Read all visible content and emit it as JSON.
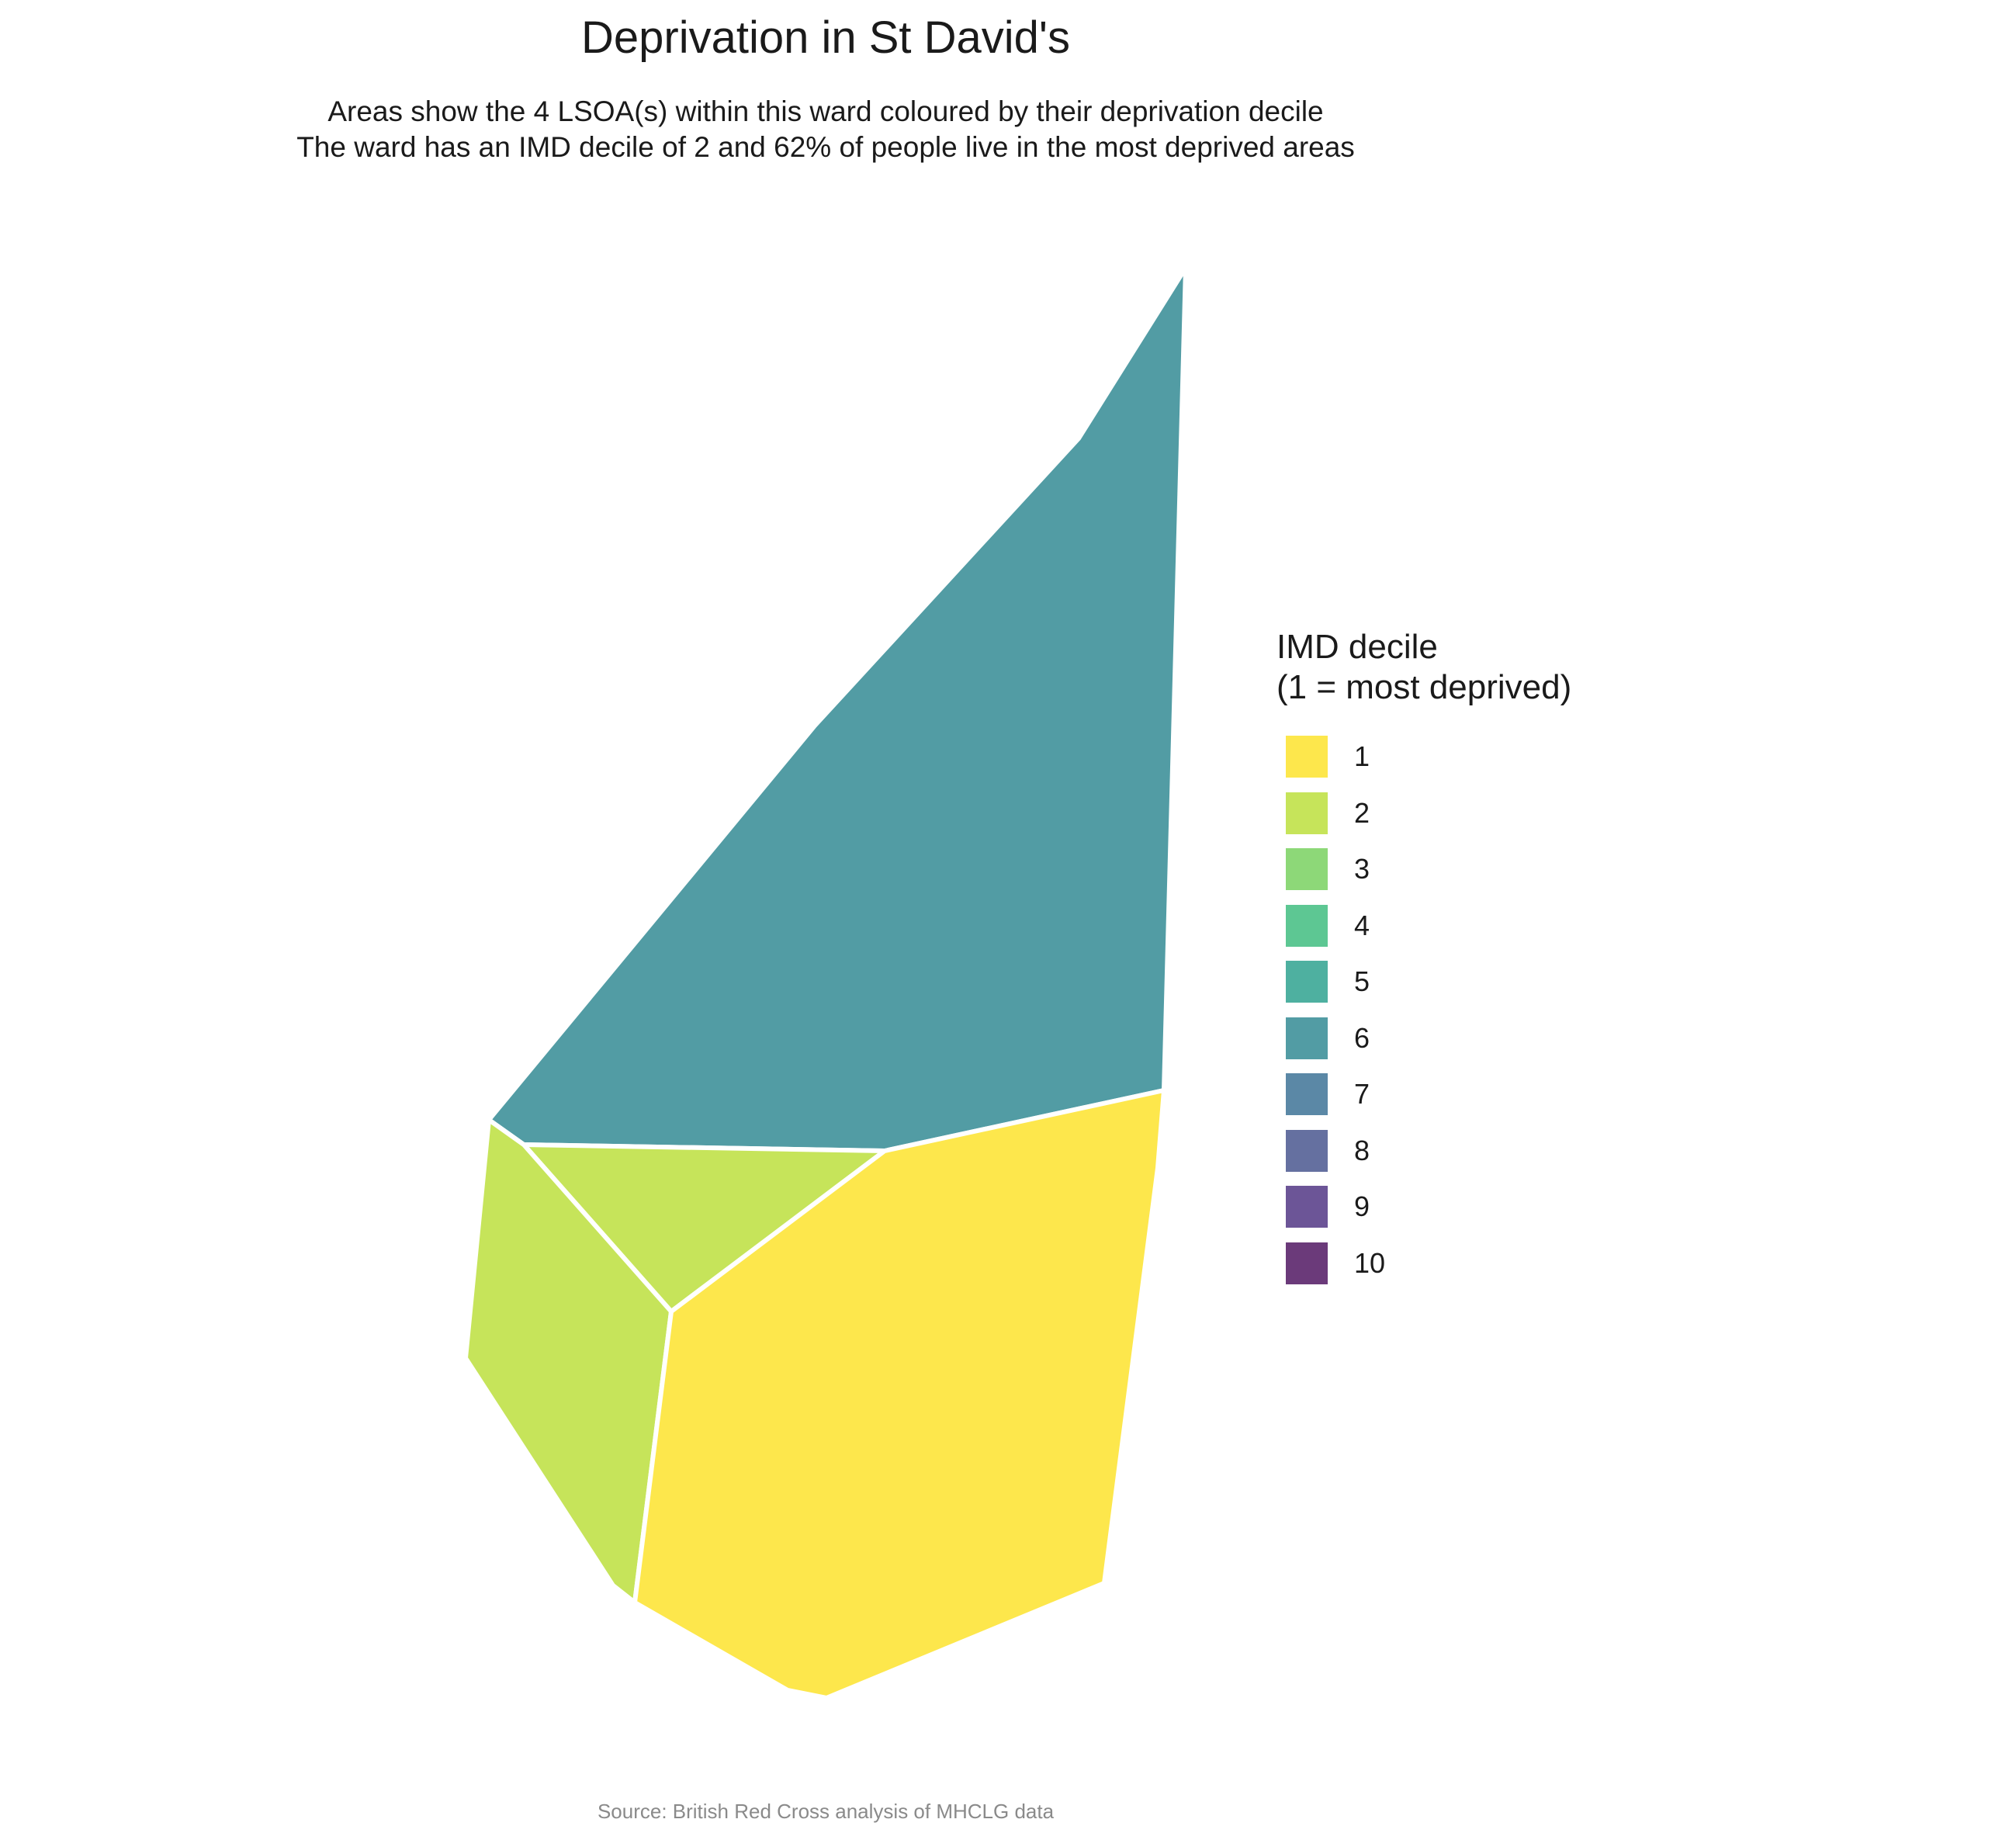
{
  "title": "Deprivation in St David's",
  "subtitle_line1": "Areas show the 4 LSOA(s) within this ward coloured by their deprivation decile",
  "subtitle_line2": "The ward has an IMD decile of 2 and 62% of people live in the most deprived areas",
  "legend": {
    "title_line1": "IMD decile",
    "title_line2": "(1 = most deprived)",
    "items": [
      {
        "label": "1",
        "color": "#FDE74C"
      },
      {
        "label": "2",
        "color": "#C6E45A"
      },
      {
        "label": "3",
        "color": "#8DD878"
      },
      {
        "label": "4",
        "color": "#5DC793"
      },
      {
        "label": "5",
        "color": "#4EB0A0"
      },
      {
        "label": "6",
        "color": "#529CA4"
      },
      {
        "label": "7",
        "color": "#5B88A6"
      },
      {
        "label": "8",
        "color": "#6570A0"
      },
      {
        "label": "9",
        "color": "#6C5597"
      },
      {
        "label": "10",
        "color": "#6B3A7A"
      }
    ]
  },
  "map_areas": [
    {
      "name": "lsoa-north",
      "decile": 6
    },
    {
      "name": "lsoa-central",
      "decile": 2
    },
    {
      "name": "lsoa-west",
      "decile": 2
    },
    {
      "name": "lsoa-south",
      "decile": 1
    }
  ],
  "caption": "Source: British Red Cross analysis of MHCLG data"
}
